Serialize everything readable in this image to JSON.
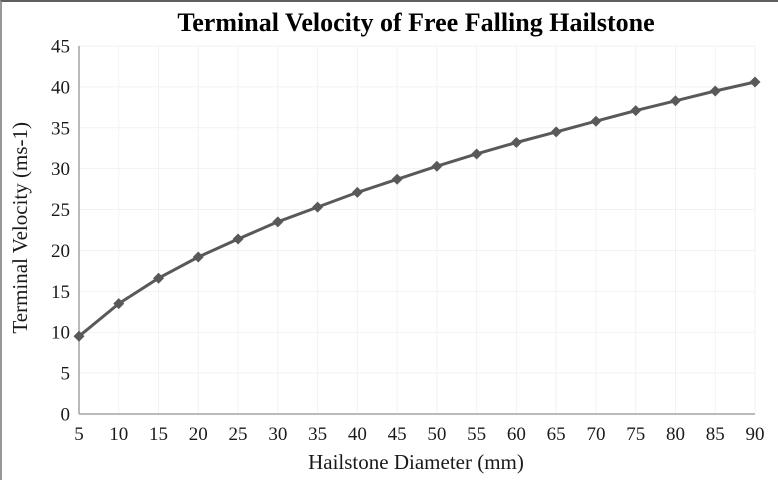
{
  "chart_data": {
    "type": "line",
    "title": "Terminal Velocity of Free Falling Hailstone",
    "xlabel": "Hailstone Diameter (mm)",
    "ylabel": "Terminal Velocity (ms-1)",
    "x": [
      5,
      10,
      15,
      20,
      25,
      30,
      35,
      40,
      45,
      50,
      55,
      60,
      65,
      70,
      75,
      80,
      85,
      90
    ],
    "y": [
      9.5,
      13.5,
      16.6,
      19.2,
      21.4,
      23.5,
      25.3,
      27.1,
      28.7,
      30.3,
      31.8,
      33.2,
      34.5,
      35.8,
      37.1,
      38.3,
      39.5,
      40.6
    ],
    "x_ticks": [
      5,
      10,
      15,
      20,
      25,
      30,
      35,
      40,
      45,
      50,
      55,
      60,
      65,
      70,
      75,
      80,
      85,
      90
    ],
    "y_ticks": [
      0,
      5,
      10,
      15,
      20,
      25,
      30,
      35,
      40,
      45
    ],
    "xlim": [
      5,
      90
    ],
    "ylim": [
      0,
      45
    ],
    "grid": true,
    "legend_position": "none",
    "marker": "diamond",
    "series_name": "Terminal Velocity"
  },
  "colors": {
    "series": "#595959",
    "gridline": "#f2f2f2",
    "axis_line": "#a3a3a3",
    "tick_text": "#1a1a1a",
    "title_text": "#000000",
    "background": "#ffffff"
  }
}
